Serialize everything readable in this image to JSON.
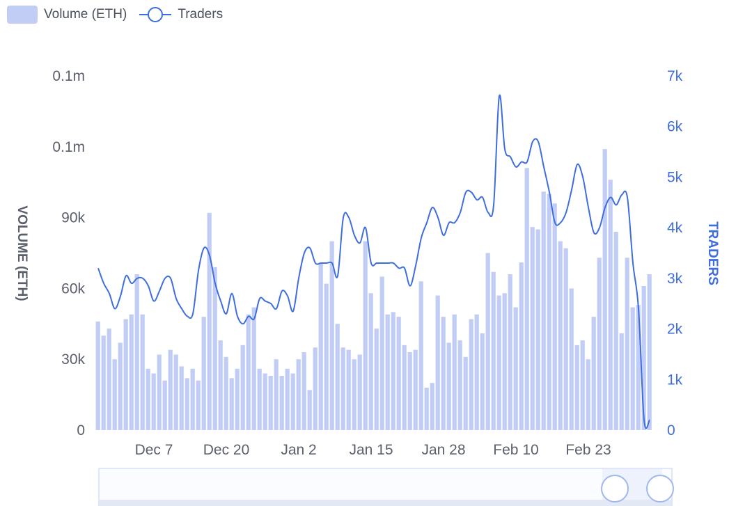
{
  "legend": {
    "volume_label": "Volume (ETH)",
    "traders_label": "Traders"
  },
  "colors": {
    "bar": "#c2cdf5",
    "line": "#3e6de0",
    "axis_left": "#5a5f6b",
    "axis_right": "#3e6de0"
  },
  "chart_data": {
    "type": "bar",
    "series": [
      {
        "name": "Volume (ETH)",
        "type": "bar",
        "axis": "left",
        "values": [
          46,
          40,
          43,
          30,
          37,
          47,
          49,
          66,
          49,
          26,
          24,
          32,
          21,
          34,
          32,
          27,
          22,
          26,
          21,
          48,
          92,
          69,
          38,
          31,
          22,
          26,
          36,
          49,
          52,
          26,
          24,
          23,
          30,
          23,
          26,
          24,
          30,
          33,
          17,
          35,
          71,
          62,
          80,
          45,
          35,
          34,
          30,
          32,
          80,
          58,
          43,
          65,
          49,
          50,
          48,
          36,
          33,
          34,
          63,
          18,
          20,
          57,
          48,
          37,
          49,
          38,
          31,
          47,
          49,
          41,
          75,
          67,
          57,
          58,
          66,
          52,
          71,
          111,
          86,
          85,
          101,
          100,
          96,
          80,
          77,
          60,
          36,
          38,
          30,
          48,
          73,
          119,
          106,
          84,
          41,
          73,
          52,
          53,
          61,
          66
        ]
      },
      {
        "name": "Traders",
        "type": "line",
        "axis": "right",
        "values": [
          3200,
          2900,
          2700,
          2400,
          2650,
          3050,
          2900,
          3000,
          3000,
          2850,
          2550,
          2750,
          3000,
          3000,
          2600,
          2400,
          2250,
          2300,
          3150,
          3600,
          3450,
          2900,
          2550,
          2300,
          2700,
          2250,
          2100,
          2250,
          2200,
          2600,
          2550,
          2500,
          2400,
          2750,
          2650,
          2350,
          3000,
          3500,
          3600,
          3300,
          3300,
          3300,
          3300,
          3050,
          4200,
          4200,
          3850,
          3700,
          4000,
          3300,
          3300,
          3300,
          3300,
          3300,
          3200,
          3200,
          2850,
          3250,
          3800,
          4100,
          4400,
          4200,
          3850,
          4100,
          4100,
          4300,
          4700,
          4700,
          4550,
          4600,
          4300,
          4450,
          6600,
          5550,
          5400,
          5200,
          5300,
          5300,
          5700,
          5700,
          5200,
          4700,
          4100,
          4100,
          4300,
          4750,
          5250,
          5000,
          4400,
          3900,
          4000,
          4400,
          4600,
          4450,
          4650,
          4600,
          3300,
          2400,
          200,
          200
        ]
      }
    ],
    "x_ticks": [
      "Dec 7",
      "Dec 20",
      "Jan 2",
      "Jan 15",
      "Jan 28",
      "Feb 10",
      "Feb 23"
    ],
    "x_tick_positions": [
      10,
      23,
      36,
      49,
      62,
      75,
      88
    ],
    "left_axis": {
      "title": "VOLUME (ETH)",
      "ticks": [
        "0.1m",
        "0.1m",
        "90k",
        "60k",
        "30k",
        "0"
      ],
      "ylim": [
        0,
        150000
      ],
      "unit_note": "values in thousands"
    },
    "right_axis": {
      "title": "TRADERS",
      "ticks": [
        "7k",
        "6k",
        "5k",
        "4k",
        "3k",
        "2k",
        "1k",
        "0"
      ],
      "ylim": [
        0,
        7000
      ]
    }
  }
}
